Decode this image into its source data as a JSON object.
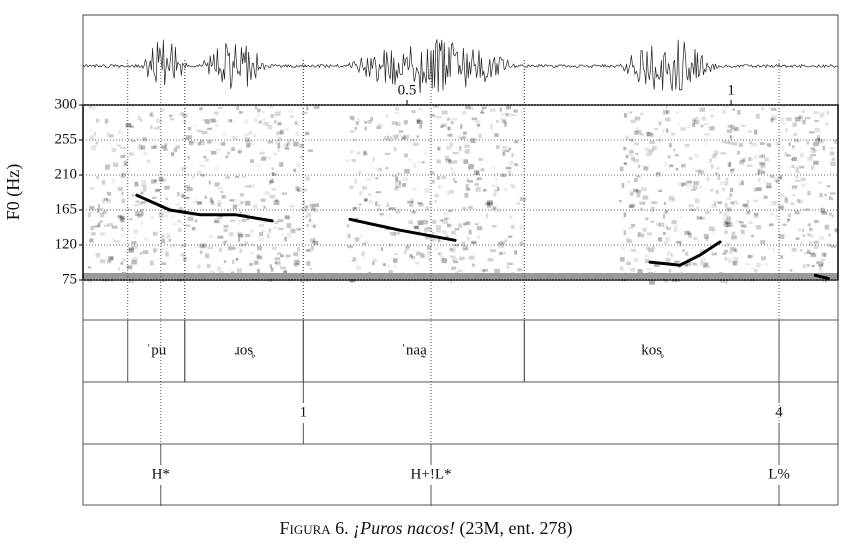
{
  "chart_data": {
    "type": "line",
    "y_label": "F0 (Hz)",
    "xlim": [
      0,
      1.165
    ],
    "xticks": [
      0.5,
      1
    ],
    "ylim": [
      75,
      300
    ],
    "yticks": [
      75,
      120,
      165,
      210,
      255,
      300
    ],
    "grid": true,
    "series": [
      {
        "name": "F0",
        "color": "#000000",
        "x": [
          0.083,
          0.134,
          0.181,
          0.235,
          0.292,
          null,
          0.412,
          0.489,
          0.574,
          null,
          0.875,
          0.921,
          0.952,
          0.983,
          null,
          1.13,
          1.15
        ],
        "values": [
          184,
          165,
          159,
          159,
          151,
          null,
          153,
          139,
          126,
          null,
          98,
          94,
          107,
          124,
          null,
          81,
          77
        ]
      }
    ],
    "tiers": [
      {
        "intervals": [
          {
            "start": 0.069,
            "end": 0.157,
            "label": "ˈpu"
          },
          {
            "start": 0.157,
            "end": 0.34,
            "label": "ɹos̥"
          },
          {
            "start": 0.34,
            "end": 0.681,
            "label": "ˈnaa̰"
          },
          {
            "start": 0.681,
            "end": 1.074,
            "label": "kos̥"
          }
        ]
      },
      {
        "points": [
          {
            "time": 0.34,
            "label": "1"
          },
          {
            "time": 1.074,
            "label": "4"
          }
        ]
      },
      {
        "points": [
          {
            "time": 0.12,
            "label": "H*"
          },
          {
            "time": 0.537,
            "label": "H+!L*"
          },
          {
            "time": 1.074,
            "label": "L%"
          }
        ]
      }
    ],
    "caption_label": "Figura 6.",
    "caption_title": "¡Puros nacos!",
    "caption_detail": "(23M, ent. 278)"
  }
}
